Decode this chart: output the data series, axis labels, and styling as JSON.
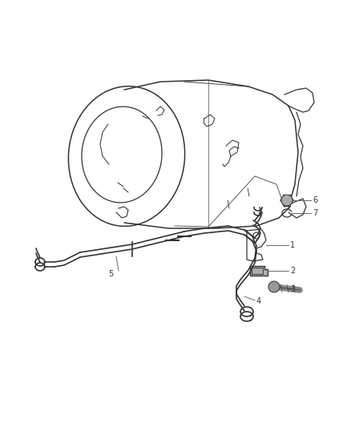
{
  "background_color": "#ffffff",
  "line_color": "#333333",
  "label_color": "#333333",
  "figsize": [
    4.38,
    5.33
  ],
  "dpi": 100
}
